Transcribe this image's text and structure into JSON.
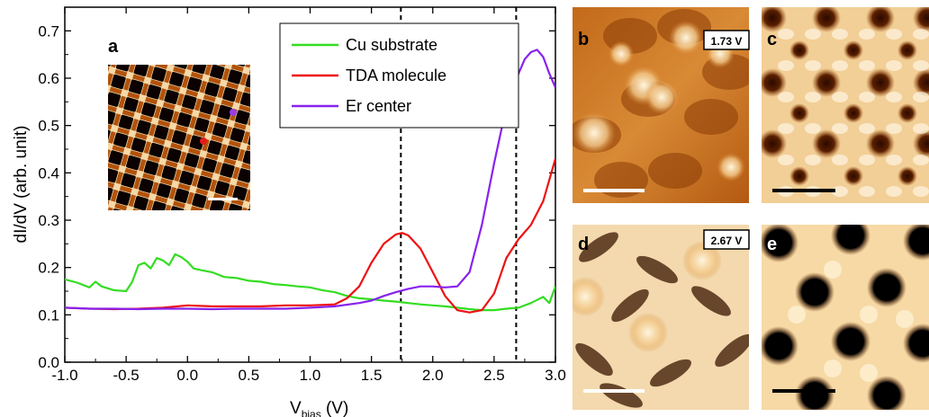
{
  "chart_data": {
    "type": "line",
    "panel_label": "a",
    "xlabel_main": "V",
    "xlabel_sub": "bias",
    "xlabel_unit": " (V)",
    "ylabel": "dI/dV (arb. unit)",
    "xlim": [
      -1.0,
      3.0
    ],
    "ylim": [
      0.0,
      0.75
    ],
    "xticks": [
      "-1.0",
      "-0.5",
      "0.0",
      "0.5",
      "1.0",
      "1.5",
      "2.0",
      "2.5",
      "3.0"
    ],
    "yticks": [
      "0.0",
      "0.1",
      "0.2",
      "0.3",
      "0.4",
      "0.5",
      "0.6",
      "0.7"
    ],
    "vlines": [
      1.74,
      2.68
    ],
    "legend_position": "top-right",
    "series": [
      {
        "name": "Cu substrate",
        "color": "#33dd22",
        "x": [
          -1.0,
          -0.9,
          -0.8,
          -0.75,
          -0.7,
          -0.6,
          -0.5,
          -0.45,
          -0.4,
          -0.35,
          -0.3,
          -0.25,
          -0.2,
          -0.15,
          -0.1,
          -0.05,
          0.0,
          0.05,
          0.1,
          0.2,
          0.3,
          0.4,
          0.5,
          0.6,
          0.7,
          0.8,
          0.9,
          1.0,
          1.1,
          1.2,
          1.3,
          1.4,
          1.5,
          1.6,
          1.7,
          1.8,
          1.9,
          2.0,
          2.1,
          2.2,
          2.3,
          2.4,
          2.5,
          2.6,
          2.7,
          2.8,
          2.9,
          2.95,
          3.0
        ],
        "y": [
          0.175,
          0.168,
          0.158,
          0.17,
          0.16,
          0.152,
          0.15,
          0.17,
          0.205,
          0.21,
          0.198,
          0.22,
          0.215,
          0.205,
          0.228,
          0.222,
          0.212,
          0.198,
          0.195,
          0.19,
          0.18,
          0.178,
          0.172,
          0.17,
          0.165,
          0.163,
          0.16,
          0.158,
          0.152,
          0.148,
          0.14,
          0.135,
          0.133,
          0.13,
          0.128,
          0.125,
          0.122,
          0.12,
          0.118,
          0.115,
          0.112,
          0.11,
          0.11,
          0.113,
          0.115,
          0.125,
          0.138,
          0.125,
          0.16
        ]
      },
      {
        "name": "TDA molecule",
        "color": "#ee1111",
        "x": [
          -1.0,
          -0.8,
          -0.6,
          -0.4,
          -0.2,
          0.0,
          0.2,
          0.4,
          0.6,
          0.8,
          1.0,
          1.2,
          1.3,
          1.4,
          1.5,
          1.6,
          1.7,
          1.75,
          1.8,
          1.9,
          2.0,
          2.1,
          2.2,
          2.3,
          2.4,
          2.5,
          2.6,
          2.7,
          2.8,
          2.9,
          3.0
        ],
        "y": [
          0.115,
          0.113,
          0.112,
          0.113,
          0.115,
          0.12,
          0.118,
          0.118,
          0.118,
          0.12,
          0.12,
          0.122,
          0.135,
          0.16,
          0.21,
          0.25,
          0.27,
          0.273,
          0.268,
          0.24,
          0.19,
          0.14,
          0.11,
          0.105,
          0.11,
          0.145,
          0.22,
          0.26,
          0.29,
          0.34,
          0.43
        ]
      },
      {
        "name": "Er center",
        "color": "#8822ee",
        "x": [
          -1.0,
          -0.8,
          -0.6,
          -0.4,
          -0.2,
          0.0,
          0.2,
          0.4,
          0.6,
          0.8,
          1.0,
          1.2,
          1.4,
          1.5,
          1.6,
          1.7,
          1.8,
          1.9,
          2.0,
          2.1,
          2.2,
          2.3,
          2.4,
          2.5,
          2.6,
          2.7,
          2.75,
          2.8,
          2.85,
          2.9,
          2.95,
          3.0
        ],
        "y": [
          0.115,
          0.113,
          0.113,
          0.112,
          0.113,
          0.113,
          0.112,
          0.113,
          0.113,
          0.113,
          0.115,
          0.118,
          0.125,
          0.13,
          0.14,
          0.148,
          0.155,
          0.16,
          0.16,
          0.158,
          0.16,
          0.19,
          0.29,
          0.42,
          0.54,
          0.61,
          0.64,
          0.655,
          0.66,
          0.645,
          0.61,
          0.58
        ]
      }
    ],
    "inset_markers": [
      {
        "color": "#e61a1a",
        "label": "TDA molecule"
      },
      {
        "color": "#9b3ce6",
        "label": "Er center"
      }
    ]
  },
  "images": [
    {
      "label": "b",
      "tag": "1.73 V",
      "label_color": "#000000",
      "scale_color": "#ffffff"
    },
    {
      "label": "c",
      "tag": "",
      "label_color": "#000000",
      "scale_color": "#000000"
    },
    {
      "label": "d",
      "tag": "2.67 V",
      "label_color": "#000000",
      "scale_color": "#ffffff"
    },
    {
      "label": "e",
      "tag": "",
      "label_color": "#ffffff",
      "scale_color": "#000000"
    }
  ]
}
